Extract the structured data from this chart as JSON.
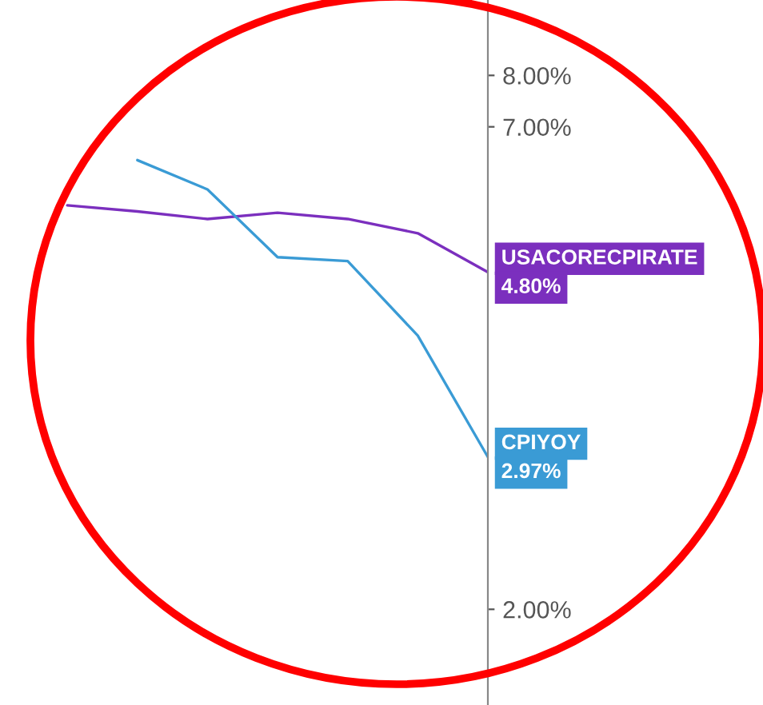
{
  "chart_data": {
    "type": "line",
    "categories": [
      null,
      null,
      null,
      null,
      null,
      null,
      null
    ],
    "series": [
      {
        "name": "USACORECPIRATE",
        "color": "#7b2fbe",
        "values": [
          5.71,
          5.62,
          5.51,
          5.6,
          5.51,
          5.31,
          4.8
        ],
        "value_labels": [
          null,
          null,
          null,
          null,
          null,
          null,
          "4.80%"
        ]
      },
      {
        "name": "CPIYOY",
        "color": "#3a9bd5",
        "values": [
          null,
          6.42,
          5.95,
          4.99,
          4.94,
          4.07,
          2.97
        ],
        "value_labels": [
          null,
          null,
          null,
          null,
          null,
          null,
          "2.97%"
        ]
      }
    ],
    "log": "y",
    "ylim": [
      1.56,
      9.73
    ],
    "yticks": [
      {
        "value": 2,
        "label": "2.00%"
      },
      {
        "value": 7,
        "label": "7.00%"
      },
      {
        "value": 8,
        "label": "8.00%"
      }
    ],
    "tick_labels": "y",
    "grid": false,
    "legend": false,
    "marker": "none",
    "line_style": "solid"
  }
}
